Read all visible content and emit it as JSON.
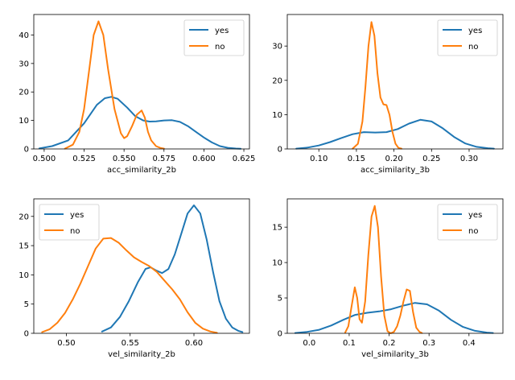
{
  "colors": {
    "yes": "#1f77b4",
    "no": "#ff7f0e"
  },
  "chart_data": [
    {
      "type": "line",
      "xlabel": "acc_similarity_2b",
      "ylabel": "",
      "xlim": [
        0.4935,
        0.6285
      ],
      "ylim": [
        0,
        47.2
      ],
      "xticks": [
        "0.500",
        "0.525",
        "0.550",
        "0.575",
        "0.600",
        "0.625"
      ],
      "yticks": [
        "0",
        "10",
        "20",
        "30",
        "40"
      ],
      "legend": "top-right",
      "series": [
        {
          "name": "yes",
          "x": [
            0.497,
            0.505,
            0.515,
            0.525,
            0.533,
            0.538,
            0.542,
            0.546,
            0.552,
            0.557,
            0.562,
            0.566,
            0.57,
            0.575,
            0.58,
            0.585,
            0.59,
            0.595,
            0.6,
            0.605,
            0.61,
            0.615,
            0.62,
            0.623
          ],
          "y": [
            0.2,
            1.0,
            3.0,
            9.0,
            15.5,
            17.8,
            18.3,
            17.6,
            14.5,
            11.5,
            10.0,
            9.6,
            9.7,
            10.0,
            10.1,
            9.5,
            8.0,
            6.0,
            4.0,
            2.3,
            1.0,
            0.4,
            0.15,
            0.05
          ]
        },
        {
          "name": "no",
          "x": [
            0.513,
            0.518,
            0.522,
            0.525,
            0.528,
            0.531,
            0.534,
            0.537,
            0.54,
            0.544,
            0.548,
            0.55,
            0.552,
            0.555,
            0.558,
            0.561,
            0.563,
            0.565,
            0.567,
            0.57,
            0.573,
            0.575
          ],
          "y": [
            0.1,
            1.5,
            6.0,
            14.0,
            27.0,
            40.0,
            44.8,
            40.0,
            28.0,
            14.0,
            5.5,
            3.8,
            4.5,
            8.0,
            12.0,
            13.5,
            11.0,
            6.0,
            3.0,
            1.0,
            0.3,
            0.1
          ]
        }
      ]
    },
    {
      "type": "line",
      "xlabel": "acc_similarity_3b",
      "ylabel": "",
      "xlim": [
        0.058,
        0.345
      ],
      "ylim": [
        0,
        39.2
      ],
      "xticks": [
        "0.10",
        "0.15",
        "0.20",
        "0.25",
        "0.30"
      ],
      "yticks": [
        "0",
        "10",
        "20",
        "30"
      ],
      "legend": "top-right",
      "series": [
        {
          "name": "yes",
          "x": [
            0.07,
            0.085,
            0.1,
            0.115,
            0.13,
            0.145,
            0.16,
            0.175,
            0.19,
            0.205,
            0.22,
            0.235,
            0.25,
            0.265,
            0.28,
            0.295,
            0.31,
            0.325,
            0.333
          ],
          "y": [
            0.1,
            0.4,
            1.0,
            2.0,
            3.2,
            4.3,
            4.9,
            4.8,
            4.9,
            5.8,
            7.4,
            8.5,
            8.0,
            6.0,
            3.5,
            1.6,
            0.6,
            0.2,
            0.1
          ]
        },
        {
          "name": "no",
          "x": [
            0.145,
            0.152,
            0.158,
            0.162,
            0.166,
            0.17,
            0.174,
            0.178,
            0.182,
            0.186,
            0.19,
            0.194,
            0.198,
            0.202,
            0.206,
            0.21
          ],
          "y": [
            0.1,
            1.5,
            8.0,
            18.0,
            30.0,
            37.0,
            33.0,
            22.0,
            15.0,
            13.0,
            12.8,
            10.0,
            5.0,
            1.5,
            0.3,
            0.1
          ]
        }
      ]
    },
    {
      "type": "line",
      "xlabel": "vel_similarity_2b",
      "ylabel": "",
      "xlim": [
        0.4745,
        0.6435
      ],
      "ylim": [
        0,
        23.0
      ],
      "xticks": [
        "0.50",
        "0.55",
        "0.60"
      ],
      "yticks": [
        "0",
        "5",
        "10",
        "15",
        "20"
      ],
      "legend": "top-left",
      "series": [
        {
          "name": "yes",
          "x": [
            0.528,
            0.535,
            0.542,
            0.549,
            0.556,
            0.562,
            0.566,
            0.57,
            0.575,
            0.58,
            0.585,
            0.59,
            0.595,
            0.6,
            0.605,
            0.61,
            0.615,
            0.62,
            0.625,
            0.63,
            0.635,
            0.638
          ],
          "y": [
            0.3,
            1.0,
            2.8,
            5.5,
            8.7,
            11.0,
            11.3,
            10.8,
            10.3,
            11.0,
            13.5,
            17.0,
            20.5,
            21.9,
            20.5,
            16.0,
            10.5,
            5.5,
            2.5,
            1.0,
            0.4,
            0.2
          ]
        },
        {
          "name": "no",
          "x": [
            0.481,
            0.487,
            0.493,
            0.499,
            0.505,
            0.511,
            0.517,
            0.523,
            0.529,
            0.535,
            0.541,
            0.547,
            0.553,
            0.559,
            0.565,
            0.571,
            0.577,
            0.583,
            0.589,
            0.595,
            0.601,
            0.607,
            0.613,
            0.618
          ],
          "y": [
            0.2,
            0.7,
            1.8,
            3.5,
            5.8,
            8.5,
            11.5,
            14.5,
            16.2,
            16.3,
            15.5,
            14.2,
            13.0,
            12.2,
            11.5,
            10.5,
            9.0,
            7.5,
            5.8,
            3.6,
            1.8,
            0.8,
            0.3,
            0.1
          ]
        }
      ]
    },
    {
      "type": "line",
      "xlabel": "vel_similarity_3b",
      "ylabel": "",
      "xlim": [
        -0.055,
        0.485
      ],
      "ylim": [
        0,
        19.0
      ],
      "xticks": [
        "0.0",
        "0.1",
        "0.2",
        "0.3",
        "0.4"
      ],
      "yticks": [
        "0",
        "5",
        "10",
        "15"
      ],
      "legend": "top-right",
      "series": [
        {
          "name": "yes",
          "x": [
            -0.035,
            -0.005,
            0.025,
            0.055,
            0.085,
            0.115,
            0.145,
            0.175,
            0.205,
            0.235,
            0.265,
            0.295,
            0.325,
            0.355,
            0.385,
            0.415,
            0.445,
            0.46
          ],
          "y": [
            0.05,
            0.2,
            0.5,
            1.1,
            1.9,
            2.6,
            2.9,
            3.1,
            3.4,
            3.9,
            4.3,
            4.1,
            3.2,
            1.9,
            0.9,
            0.35,
            0.1,
            0.05
          ]
        },
        {
          "name": "no",
          "x": [
            0.09,
            0.098,
            0.106,
            0.114,
            0.12,
            0.126,
            0.132,
            0.14,
            0.148,
            0.156,
            0.164,
            0.172,
            0.18,
            0.188,
            0.196,
            0.204,
            0.212,
            0.22,
            0.228,
            0.236,
            0.244,
            0.252,
            0.26,
            0.268,
            0.276,
            0.282
          ],
          "y": [
            0.1,
            1.0,
            3.8,
            6.5,
            5.0,
            2.0,
            1.5,
            4.5,
            11.0,
            16.5,
            18.0,
            15.0,
            8.0,
            2.5,
            0.3,
            0.0,
            0.2,
            1.0,
            2.5,
            4.5,
            6.2,
            6.0,
            3.0,
            0.8,
            0.2,
            0.05
          ]
        }
      ]
    }
  ]
}
